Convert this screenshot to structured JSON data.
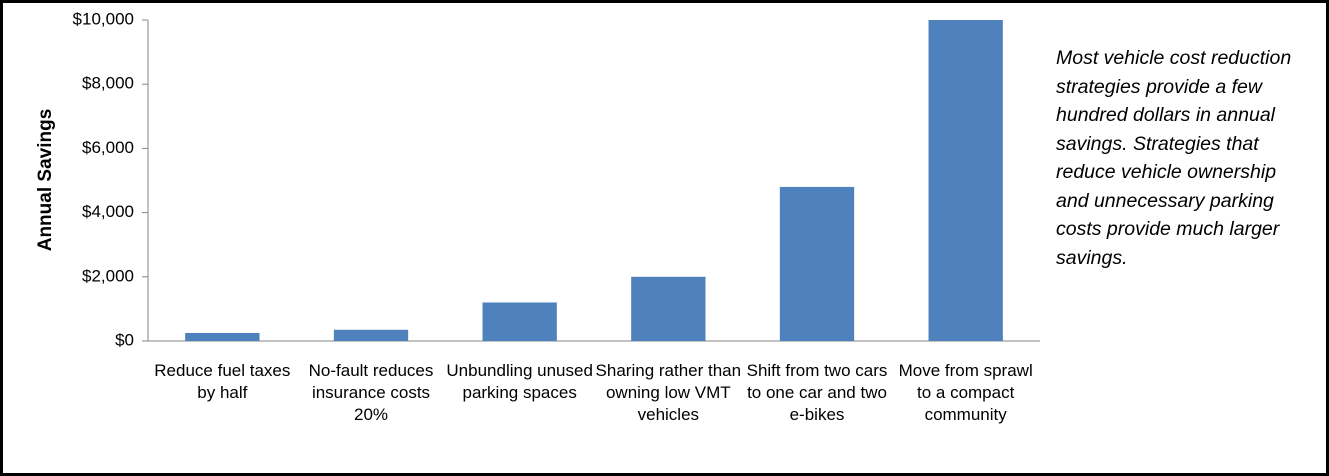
{
  "chart_data": {
    "type": "bar",
    "y_axis_label": "Annual Savings",
    "annotation": "Most vehicle cost reduction strategies provide a few hundred dollars in annual savings. Strategies that reduce vehicle ownership and unnecessary parking costs provide much larger savings.",
    "categories": [
      "Reduce fuel taxes by half",
      "No-fault reduces insurance costs 20%",
      "Unbundling unused parking spaces",
      "Sharing rather than owning low VMT vehicles",
      "Shift from two cars to one car and two e-bikes",
      "Move from sprawl to a compact community"
    ],
    "values": [
      250,
      350,
      1200,
      2000,
      4800,
      10000
    ],
    "color": "#4f81bd",
    "ylim": [
      0,
      10000
    ],
    "yticks": [
      {
        "value": 0,
        "label": "$0"
      },
      {
        "value": 2000,
        "label": "$2,000"
      },
      {
        "value": 4000,
        "label": "$4,000"
      },
      {
        "value": 6000,
        "label": "$6,000"
      },
      {
        "value": 8000,
        "label": "$8,000"
      },
      {
        "value": 10000,
        "label": "$10,000"
      }
    ],
    "grid": false
  }
}
